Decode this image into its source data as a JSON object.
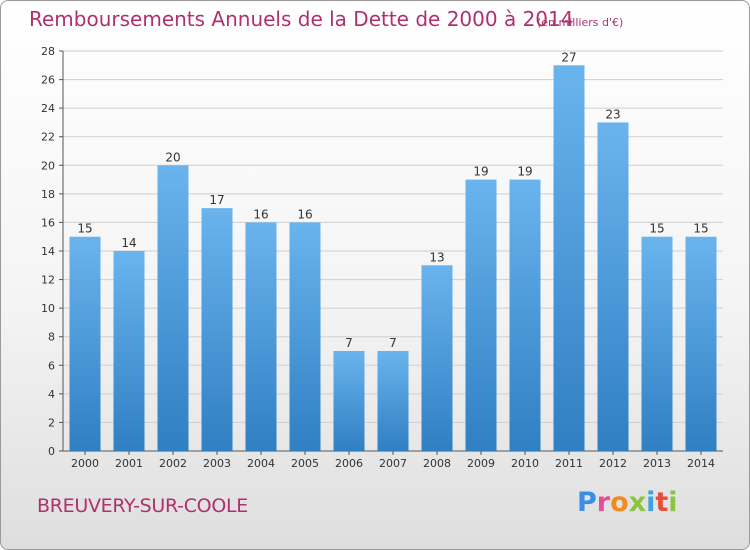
{
  "header": {
    "title": "Remboursements Annuels de la Dette de 2000 à 2014",
    "unit": "(en milliers d'€)"
  },
  "footer": {
    "city": "BREUVERY-SUR-COOLE",
    "logo_letters": [
      "P",
      "r",
      "o",
      "x",
      "i",
      "t",
      "i"
    ]
  },
  "colors": {
    "title": "#b0306f",
    "bar_light": "#6ab4ee",
    "bar_dark": "#2f7fc2",
    "gridline": "#cfcfcf"
  },
  "chart_data": {
    "type": "bar",
    "title": "Remboursements Annuels de la Dette de 2000 à 2014",
    "xlabel": "",
    "ylabel": "",
    "categories": [
      "2000",
      "2001",
      "2002",
      "2003",
      "2004",
      "2005",
      "2006",
      "2007",
      "2008",
      "2009",
      "2010",
      "2011",
      "2012",
      "2013",
      "2014"
    ],
    "values": [
      15,
      14,
      20,
      17,
      16,
      16,
      7,
      7,
      13,
      19,
      19,
      27,
      23,
      15,
      15
    ],
    "ylim": [
      0,
      28
    ],
    "yticks": [
      0,
      2,
      4,
      6,
      8,
      10,
      12,
      14,
      16,
      18,
      20,
      22,
      24,
      26,
      28
    ],
    "grid": true,
    "legend": "none"
  }
}
